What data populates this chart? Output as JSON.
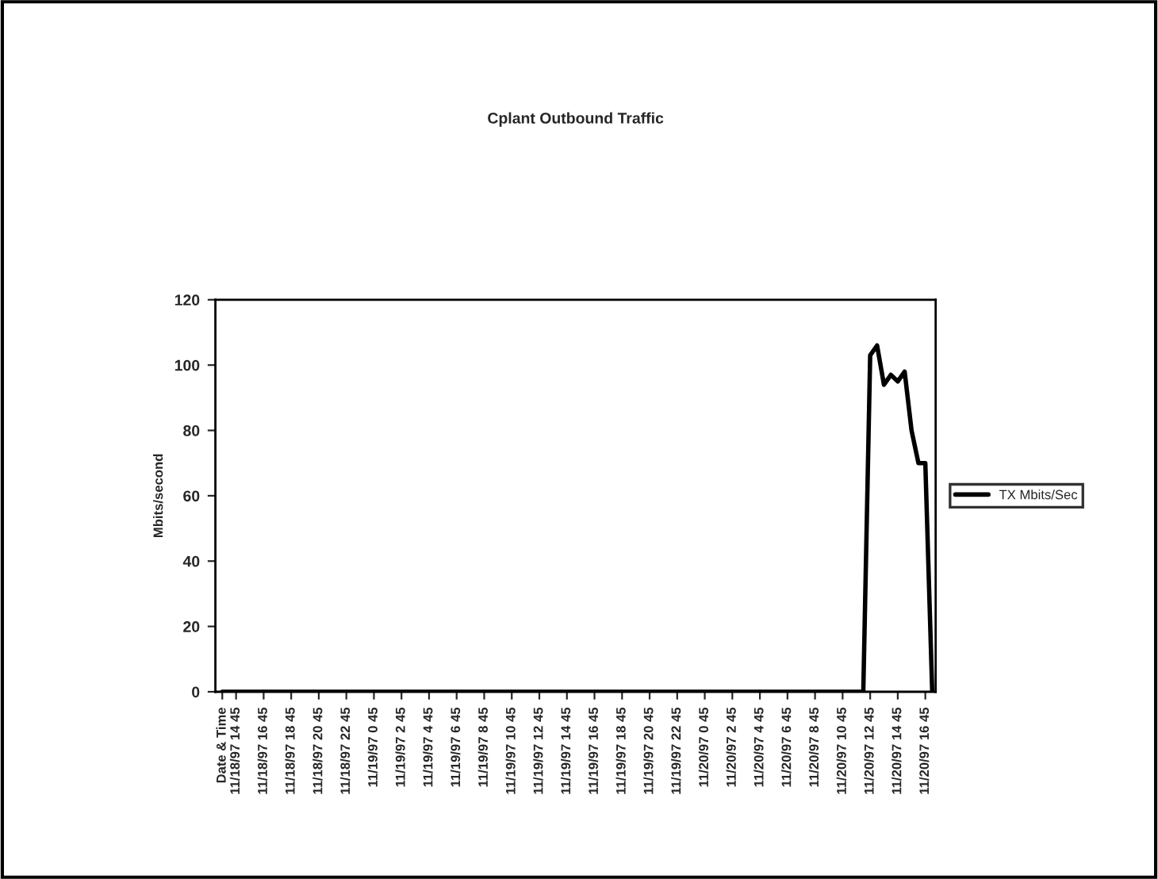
{
  "chart_data": {
    "type": "line",
    "title": "Cplant Outbound Traffic",
    "ylabel": "Mbits/second",
    "categories": [
      "Date & Time",
      null,
      "11/18/97 14 45",
      null,
      null,
      null,
      "11/18/97 16 45",
      null,
      null,
      null,
      "11/18/97 18 45",
      null,
      null,
      null,
      "11/18/97 20 45",
      null,
      null,
      null,
      "11/18/97 22 45",
      null,
      null,
      null,
      "11/19/97 0 45",
      null,
      null,
      null,
      "11/19/97 2 45",
      null,
      null,
      null,
      "11/19/97 4 45",
      null,
      null,
      null,
      "11/19/97 6 45",
      null,
      null,
      null,
      "11/19/97 8 45",
      null,
      null,
      null,
      "11/19/97 10 45",
      null,
      null,
      null,
      "11/19/97 12 45",
      null,
      null,
      null,
      "11/19/97 14 45",
      null,
      null,
      null,
      "11/19/97 16 45",
      null,
      null,
      null,
      "11/19/97 18 45",
      null,
      null,
      null,
      "11/19/97 20 45",
      null,
      null,
      null,
      "11/19/97 22 45",
      null,
      null,
      null,
      "11/20/97 0 45",
      null,
      null,
      null,
      "11/20/97 2 45",
      null,
      null,
      null,
      "11/20/97 4 45",
      null,
      null,
      null,
      "11/20/97 6 45",
      null,
      null,
      null,
      "11/20/97 8 45",
      null,
      null,
      null,
      "11/20/97 10 45",
      null,
      null,
      null,
      "11/20/97 12 45",
      null,
      null,
      null,
      "11/20/97 14 45",
      null,
      null,
      null,
      "11/20/97 16 45",
      null
    ],
    "series": [
      {
        "name": "TX Mbits/Sec",
        "color": "#000000",
        "values": [
          0,
          0,
          0,
          0,
          0,
          0,
          0,
          0,
          0,
          0,
          0,
          0,
          0,
          0,
          0,
          0,
          0,
          0,
          0,
          0,
          0,
          0,
          0,
          0,
          0,
          0,
          0,
          0,
          0,
          0,
          0,
          0,
          0,
          0,
          0,
          0,
          0,
          0,
          0,
          0,
          0,
          0,
          0,
          0,
          0,
          0,
          0,
          0,
          0,
          0,
          0,
          0,
          0,
          0,
          0,
          0,
          0,
          0,
          0,
          0,
          0,
          0,
          0,
          0,
          0,
          0,
          0,
          0,
          0,
          0,
          0,
          0,
          0,
          0,
          0,
          0,
          0,
          0,
          0,
          0,
          0,
          0,
          0,
          0,
          0,
          0,
          0,
          0,
          0,
          0,
          0,
          0,
          0,
          0,
          103,
          106,
          94,
          97,
          95,
          98,
          80,
          70,
          70,
          0
        ]
      }
    ],
    "ylim": [
      0,
      120
    ],
    "yticks": [
      0,
      20,
      40,
      60,
      80,
      100,
      120
    ],
    "grid": false,
    "legend": "right",
    "line_style": "solid",
    "marker": "none"
  }
}
